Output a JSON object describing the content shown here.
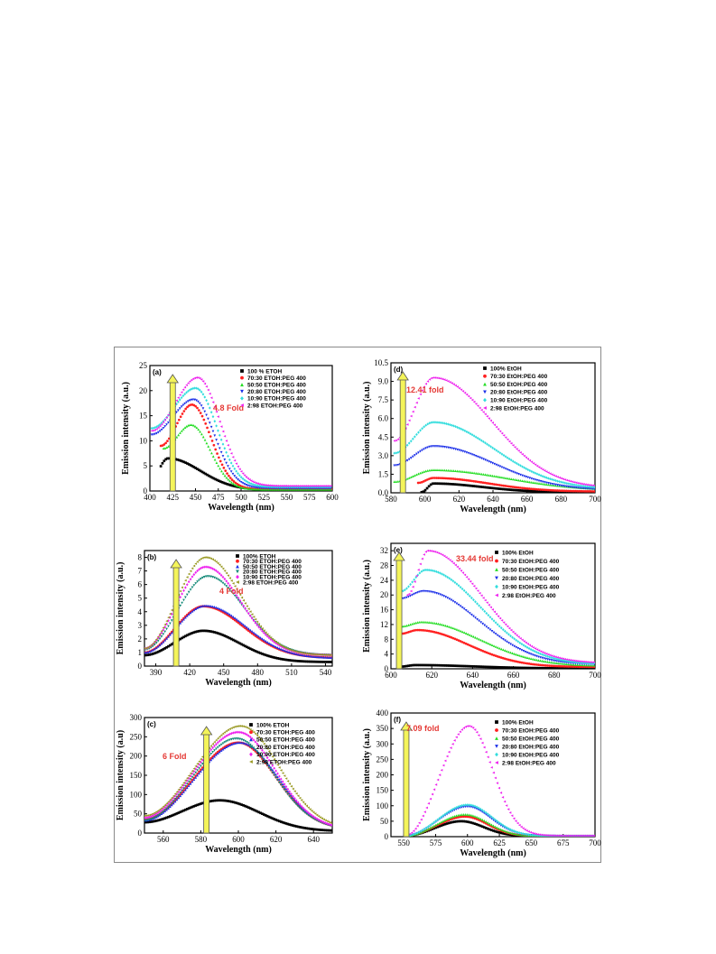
{
  "chart_data": [
    {
      "type": "scatter",
      "panel_label": "(a)",
      "xlabel": "Wavelength (nm)",
      "ylabel": "Emission intensity (a.u.)",
      "xlim": [
        400,
        600
      ],
      "ylim": [
        0,
        25
      ],
      "xticks": [
        400,
        425,
        450,
        475,
        500,
        525,
        550,
        575,
        600
      ],
      "yticks": [
        0,
        5,
        10,
        15,
        20,
        25
      ],
      "annotation": "4.8 Fold",
      "arrow_x": 425,
      "legend_placement": "top-right",
      "series": [
        {
          "name": "100 % ETOH",
          "color": "#000000",
          "marker": "square",
          "start": 412,
          "peak": 420,
          "amp": 6.5,
          "base": 0.2,
          "wl": 15,
          "wr": 50
        },
        {
          "name": "70:30 ETOH:PEG 400",
          "color": "#ff2020",
          "marker": "circle",
          "start": 412,
          "peak": 446,
          "amp": 17.2,
          "base": 0.3,
          "wl": 22,
          "wr": 30,
          "startv": 9.0
        },
        {
          "name": "50:50 ETOH:PEG 400",
          "color": "#22dd22",
          "marker": "triangle",
          "start": 415,
          "peak": 445,
          "amp": 13.2,
          "base": 0.3,
          "wl": 22,
          "wr": 30,
          "startv": 8.5
        },
        {
          "name": "20:80 ETOH:PEG 400",
          "color": "#1a2ee8",
          "marker": "triangle-down",
          "start": 402,
          "peak": 448,
          "amp": 18.2,
          "base": 0.5,
          "wl": 25,
          "wr": 32,
          "startv": 11.2
        },
        {
          "name": "10:90 ETOH:PEG 400",
          "color": "#33dddd",
          "marker": "diamond",
          "start": 402,
          "peak": 450,
          "amp": 20.5,
          "base": 0.8,
          "wl": 26,
          "wr": 33,
          "startv": 12.5
        },
        {
          "name": "2:98 ETOH:PEG 400",
          "color": "#ee22ee",
          "marker": "triangle-left",
          "start": 402,
          "peak": 452,
          "amp": 22.6,
          "base": 1.0,
          "wl": 26,
          "wr": 34,
          "startv": 12.0
        }
      ]
    },
    {
      "type": "scatter",
      "panel_label": "(d)",
      "xlabel": "Wavelength (nm)",
      "ylabel": "Emission intensity (a.u.)",
      "xlim": [
        580,
        700
      ],
      "ylim": [
        0,
        10.5
      ],
      "xticks": [
        580,
        600,
        620,
        640,
        660,
        680,
        700
      ],
      "yticks": [
        0.0,
        1.5,
        3.0,
        4.5,
        6.0,
        7.5,
        9.0,
        10.5
      ],
      "annotation": "12.41 fold",
      "arrow_x": 587,
      "legend_placement": "top-right",
      "series": [
        {
          "name": "100% EtOH",
          "color": "#000000",
          "marker": "square",
          "start": 598,
          "peak": 605,
          "amp": 0.75,
          "base": 0.05,
          "wl": 6,
          "wr": 40,
          "startv": 0.05
        },
        {
          "name": "70:30 EtOH:PEG 400",
          "color": "#ff2020",
          "marker": "circle",
          "start": 596,
          "peak": 605,
          "amp": 1.2,
          "base": 0.1,
          "wl": 8,
          "wr": 45,
          "startv": 0.8
        },
        {
          "name": "50:50 EtOH:PEG 400",
          "color": "#22dd22",
          "marker": "triangle",
          "start": 582,
          "peak": 605,
          "amp": 1.85,
          "base": 0.2,
          "wl": 25,
          "wr": 60,
          "startv": 0.9
        },
        {
          "name": "20:80 EtOH:PEG 400",
          "color": "#1a2ee8",
          "marker": "triangle-down",
          "start": 582,
          "peak": 605,
          "amp": 3.75,
          "base": 0.2,
          "wl": 20,
          "wr": 50,
          "startv": 2.2
        },
        {
          "name": "10:90 EtOH:PEG 400",
          "color": "#33dddd",
          "marker": "diamond",
          "start": 582,
          "peak": 605,
          "amp": 5.7,
          "base": 0.3,
          "wl": 20,
          "wr": 50,
          "startv": 3.2
        },
        {
          "name": "2:98 EtOH:PEG 400",
          "color": "#ee22ee",
          "marker": "triangle-left",
          "start": 582,
          "peak": 605,
          "amp": 9.3,
          "base": 0.4,
          "wl": 20,
          "wr": 48,
          "startv": 4.2
        }
      ]
    },
    {
      "type": "scatter",
      "panel_label": "(b)",
      "xlabel": "Wavelength (nm)",
      "ylabel": "Emission intensity (a.u.)",
      "xlim": [
        380,
        546
      ],
      "ylim": [
        0,
        8.5
      ],
      "xticks": [
        390,
        420,
        450,
        480,
        510,
        540
      ],
      "yticks": [
        0,
        1,
        2,
        3,
        4,
        5,
        6,
        7,
        8
      ],
      "annotation": "4 Fold",
      "arrow_x": 408,
      "legend_placement": "top-right",
      "series": [
        {
          "name": "100% ETOH",
          "color": "#000000",
          "marker": "square",
          "start": 380,
          "peak": 432,
          "amp": 2.6,
          "base": 0.3,
          "wl": 30,
          "wr": 45,
          "startv": 0.8
        },
        {
          "name": "70:30 ETOH:PEG 400",
          "color": "#ff2020",
          "marker": "circle",
          "start": 380,
          "peak": 432,
          "amp": 4.4,
          "base": 0.6,
          "wl": 30,
          "wr": 50,
          "startv": 1.0
        },
        {
          "name": "50:50 ETOH:PEG 400",
          "color": "#1a2ee8",
          "marker": "triangle",
          "start": 380,
          "peak": 434,
          "amp": 4.45,
          "base": 0.6,
          "wl": 30,
          "wr": 50,
          "startv": 1.0
        },
        {
          "name": "20:80 ETOH:PEG 400",
          "color": "#118877",
          "marker": "triangle-down",
          "start": 380,
          "peak": 436,
          "amp": 6.6,
          "base": 0.8,
          "wl": 28,
          "wr": 45,
          "startv": 1.2
        },
        {
          "name": "10:90 ETOH:PEG 400",
          "color": "#ee22ee",
          "marker": "diamond",
          "start": 380,
          "peak": 434,
          "amp": 7.3,
          "base": 0.8,
          "wl": 28,
          "wr": 44,
          "startv": 1.3
        },
        {
          "name": "2:98 ETOH:PEG 400",
          "color": "#999922",
          "marker": "triangle-left",
          "start": 380,
          "peak": 434,
          "amp": 8.0,
          "base": 0.8,
          "wl": 28,
          "wr": 44,
          "startv": 1.3
        }
      ]
    },
    {
      "type": "scatter",
      "panel_label": "(e)",
      "xlabel": "Wavelength (nm)",
      "ylabel": "Emission intensity (a.u.)",
      "xlim": [
        600,
        700
      ],
      "ylim": [
        0,
        34
      ],
      "xticks": [
        600,
        620,
        640,
        660,
        680,
        700
      ],
      "yticks": [
        0,
        4,
        8,
        12,
        16,
        20,
        24,
        28,
        32
      ],
      "annotation": "33.44 fold",
      "arrow_x": 604,
      "legend_placement": "top-right",
      "series": [
        {
          "name": "100% EtOH",
          "color": "#000000",
          "marker": "square",
          "start": 605,
          "peak": 612,
          "amp": 1.0,
          "base": 0.1,
          "wl": 10,
          "wr": 40,
          "startv": 0.6
        },
        {
          "name": "70:30 EtOH:PEG 400",
          "color": "#ff2020",
          "marker": "circle",
          "start": 605,
          "peak": 613,
          "amp": 10.5,
          "base": 0.5,
          "wl": 12,
          "wr": 35,
          "startv": 9.5
        },
        {
          "name": "50:50 EtOH:PEG 400",
          "color": "#22dd22",
          "marker": "triangle",
          "start": 605,
          "peak": 615,
          "amp": 12.7,
          "base": 0.8,
          "wl": 12,
          "wr": 40,
          "startv": 11.5
        },
        {
          "name": "20:80 EtOH:PEG 400",
          "color": "#1a2ee8",
          "marker": "triangle-down",
          "start": 605,
          "peak": 616,
          "amp": 21.0,
          "base": 1.0,
          "wl": 10,
          "wr": 38,
          "startv": 19.0
        },
        {
          "name": "10:90 EtOH:PEG 400",
          "color": "#33dddd",
          "marker": "diamond",
          "start": 605,
          "peak": 617,
          "amp": 26.8,
          "base": 1.2,
          "wl": 10,
          "wr": 38,
          "startv": 21.0
        },
        {
          "name": "2:98 EtOH:PEG 400",
          "color": "#ee22ee",
          "marker": "triangle-left",
          "start": 608,
          "peak": 618,
          "amp": 32.0,
          "base": 1.5,
          "wl": 9,
          "wr": 37,
          "startv": 20.0
        }
      ]
    },
    {
      "type": "scatter",
      "panel_label": "(c)",
      "xlabel": "Wavelength (nm)",
      "ylabel": "Emission intensity (a.u)",
      "xlim": [
        550,
        650
      ],
      "ylim": [
        0,
        300
      ],
      "xticks": [
        560,
        580,
        600,
        620,
        640
      ],
      "yticks": [
        0,
        50,
        100,
        150,
        200,
        250,
        300
      ],
      "annotation": "6 Fold",
      "arrow_x": 583,
      "legend_placement": "top-right",
      "series": [
        {
          "name": "100% ETOH",
          "color": "#000000",
          "marker": "square",
          "start": 550,
          "peak": 590,
          "amp": 85,
          "base": 5,
          "wl": 22,
          "wr": 30,
          "startv": 28
        },
        {
          "name": "70:30 ETOH:PEG 400",
          "color": "#ff2020",
          "marker": "circle",
          "start": 550,
          "peak": 600,
          "amp": 235,
          "base": 10,
          "wl": 28,
          "wr": 28,
          "startv": 35
        },
        {
          "name": "50:50 ETOH:PEG 400",
          "color": "#1a2ee8",
          "marker": "triangle",
          "start": 550,
          "peak": 601,
          "amp": 235,
          "base": 10,
          "wl": 28,
          "wr": 28,
          "startv": 33
        },
        {
          "name": "20:80 ETOH:PEG 400",
          "color": "#118877",
          "marker": "triangle-down",
          "start": 550,
          "peak": 599,
          "amp": 245,
          "base": 10,
          "wl": 28,
          "wr": 28,
          "startv": 33
        },
        {
          "name": "10:90 ETOH:PEG 400",
          "color": "#ee22ee",
          "marker": "diamond",
          "start": 550,
          "peak": 600,
          "amp": 262,
          "base": 10,
          "wl": 29,
          "wr": 28,
          "startv": 40
        },
        {
          "name": "2:98 ETOH:PEG 400",
          "color": "#999922",
          "marker": "triangle-left",
          "start": 550,
          "peak": 601,
          "amp": 278,
          "base": 10,
          "wl": 30,
          "wr": 29,
          "startv": 45
        }
      ]
    },
    {
      "type": "scatter",
      "panel_label": "(f)",
      "xlabel": "Wavelength (nm)",
      "ylabel": "Emission intensity (a.u.)",
      "xlim": [
        540,
        700
      ],
      "ylim": [
        0,
        400
      ],
      "xticks": [
        550,
        575,
        600,
        625,
        650,
        675,
        700
      ],
      "yticks": [
        0,
        50,
        100,
        150,
        200,
        250,
        300,
        350,
        400
      ],
      "annotation": "7.09 fold",
      "arrow_x": 552,
      "legend_placement": "top-right",
      "series": [
        {
          "name": "100% EtOH",
          "color": "#000000",
          "marker": "square",
          "start": 552,
          "peak": 595,
          "amp": 50,
          "base": 2,
          "wl": 20,
          "wr": 25,
          "startv": 3
        },
        {
          "name": "70:30 EtOH:PEG 400",
          "color": "#ff2020",
          "marker": "circle",
          "start": 552,
          "peak": 598,
          "amp": 65,
          "base": 2,
          "wl": 20,
          "wr": 25,
          "startv": 3
        },
        {
          "name": "50:50 EtOH:PEG 400",
          "color": "#22dd22",
          "marker": "triangle",
          "start": 552,
          "peak": 598,
          "amp": 72,
          "base": 2,
          "wl": 20,
          "wr": 26,
          "startv": 3
        },
        {
          "name": "20:80 EtOH:PEG 400",
          "color": "#1a2ee8",
          "marker": "triangle-down",
          "start": 552,
          "peak": 600,
          "amp": 97,
          "base": 2,
          "wl": 20,
          "wr": 26,
          "startv": 3
        },
        {
          "name": "10:90 EtOH:PEG 400",
          "color": "#33dddd",
          "marker": "diamond",
          "start": 552,
          "peak": 600,
          "amp": 103,
          "base": 2,
          "wl": 20,
          "wr": 27,
          "startv": 3
        },
        {
          "name": "2:98 EtOH:PEG 400",
          "color": "#ee22ee",
          "marker": "triangle-left",
          "start": 552,
          "peak": 601,
          "amp": 358,
          "base": 3,
          "wl": 20,
          "wr": 26,
          "startv": 5
        }
      ]
    }
  ]
}
